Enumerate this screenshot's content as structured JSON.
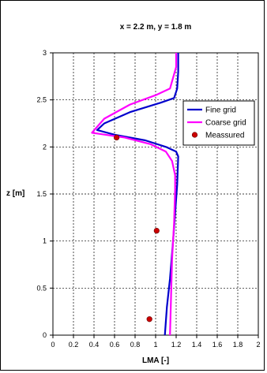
{
  "chart_data": {
    "type": "line",
    "title": "x = 2.2 m, y = 1.8 m",
    "xlabel": "LMA [-]",
    "ylabel": "z [m]",
    "xlim": [
      0,
      2
    ],
    "ylim": [
      0,
      3
    ],
    "xticks": [
      "0",
      "0.2",
      "0.4",
      "0.6",
      "0.8",
      "1",
      "1.2",
      "1.4",
      "1.6",
      "1.8",
      "2"
    ],
    "yticks": [
      "0",
      "0.5",
      "1",
      "1.5",
      "2",
      "2.5",
      "3"
    ],
    "grid": true,
    "legend_position": "right",
    "series": [
      {
        "name": "Fine grid",
        "color": "#0000cc",
        "style": "line",
        "points": [
          [
            1.09,
            0
          ],
          [
            1.11,
            0.3
          ],
          [
            1.14,
            0.6
          ],
          [
            1.17,
            1.0
          ],
          [
            1.19,
            1.3
          ],
          [
            1.21,
            1.6
          ],
          [
            1.22,
            1.9
          ],
          [
            1.2,
            1.95
          ],
          [
            1.1,
            2.0
          ],
          [
            0.9,
            2.07
          ],
          [
            0.6,
            2.13
          ],
          [
            0.43,
            2.18
          ],
          [
            0.5,
            2.25
          ],
          [
            0.75,
            2.37
          ],
          [
            1.05,
            2.47
          ],
          [
            1.18,
            2.52
          ],
          [
            1.21,
            2.62
          ],
          [
            1.22,
            2.8
          ],
          [
            1.22,
            3.0
          ]
        ]
      },
      {
        "name": "Coarse grid",
        "color": "#ff00ff",
        "style": "line",
        "points": [
          [
            1.14,
            0
          ],
          [
            1.15,
            0.4
          ],
          [
            1.16,
            0.8
          ],
          [
            1.18,
            1.2
          ],
          [
            1.19,
            1.55
          ],
          [
            1.19,
            1.7
          ],
          [
            1.16,
            1.85
          ],
          [
            1.1,
            1.95
          ],
          [
            0.95,
            2.03
          ],
          [
            0.7,
            2.1
          ],
          [
            0.38,
            2.15
          ],
          [
            0.5,
            2.3
          ],
          [
            0.75,
            2.45
          ],
          [
            1.0,
            2.55
          ],
          [
            1.14,
            2.62
          ],
          [
            1.2,
            2.85
          ],
          [
            1.2,
            3.0
          ]
        ]
      },
      {
        "name": "Meassured",
        "color": "#cc0000",
        "style": "marker",
        "points": [
          [
            0.62,
            2.1
          ],
          [
            1.01,
            1.11
          ],
          [
            0.94,
            0.17
          ]
        ]
      }
    ]
  }
}
